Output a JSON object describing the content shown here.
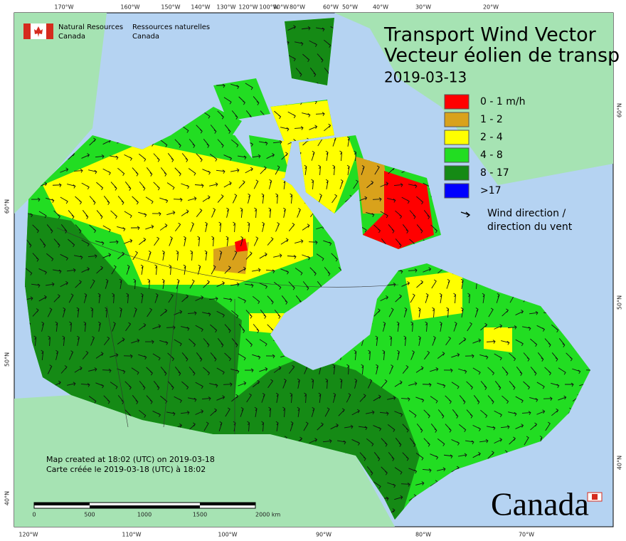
{
  "header": {
    "agency_en": "Natural Resources",
    "agency_en_2": "Canada",
    "agency_fr": "Ressources naturelles",
    "agency_fr_2": "Canada"
  },
  "title": {
    "line1": "Transport Wind Vector",
    "line2": "Vecteur éolien de transp",
    "date": "2019-03-13"
  },
  "legend": {
    "items": [
      {
        "label": "0 - 1 m/h",
        "color": "#ff0000"
      },
      {
        "label": "1 - 2",
        "color": "#d9a21b"
      },
      {
        "label": "2 - 4",
        "color": "#ffff00"
      },
      {
        "label": "4 - 8",
        "color": "#22dd22"
      },
      {
        "label": "8 - 17",
        "color": "#158a15"
      },
      {
        "label": ">17",
        "color": "#0000ff"
      }
    ],
    "arrow_line1": "Wind direction /",
    "arrow_line2": "direction du vent"
  },
  "graticule": {
    "top": [
      "170°W",
      "160°W",
      "150°W",
      "140°W",
      "130°W",
      "120°W",
      "100°W",
      "90°W",
      "80°W",
      "60°W",
      "50°W",
      "40°W",
      "30°W",
      "20°W"
    ],
    "bottom": [
      "120°W",
      "110°W",
      "100°W",
      "90°W",
      "80°W",
      "70°W"
    ],
    "left": [
      "60°N",
      "50°N",
      "40°N"
    ],
    "right": [
      "60°N",
      "50°N",
      "40°N"
    ]
  },
  "notes": {
    "line1": "Map created at 18:02 (UTC) on 2019-03-18",
    "line2": "Carte créée le 2019-03-18 (UTC) à 18:02"
  },
  "scale": {
    "labels": [
      "0",
      "500",
      "1000",
      "1500",
      "2000 km"
    ]
  },
  "wordmark": "Canada"
}
